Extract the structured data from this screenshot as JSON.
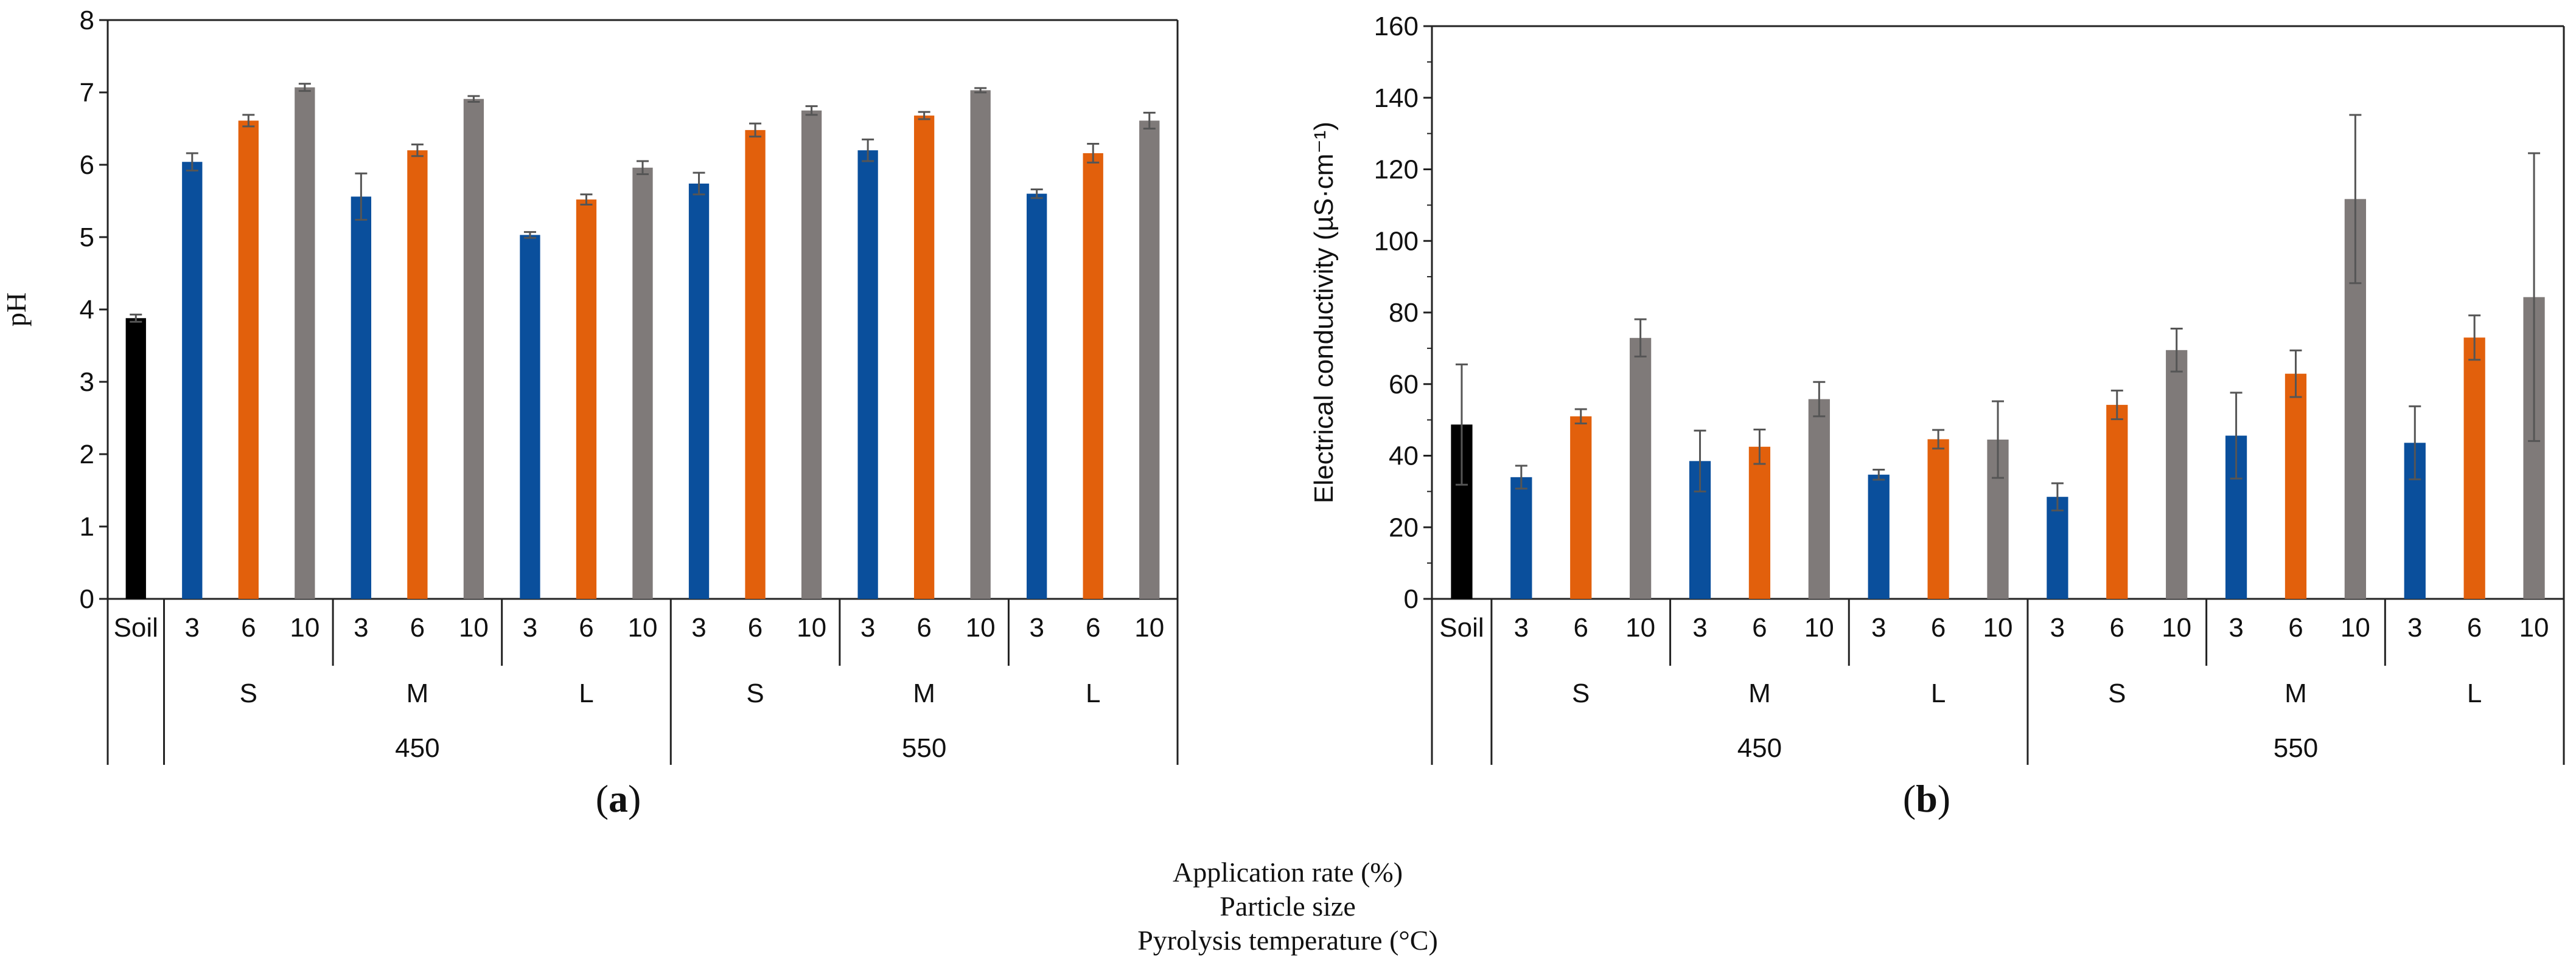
{
  "colors": {
    "soil": "#000000",
    "rate3": "#0a4f9c",
    "rate6": "#e2600c",
    "rate10": "#7f7a79",
    "axis": "#222222",
    "errorbar": "#555555"
  },
  "chart_data": [
    {
      "type": "bar",
      "panel_label_pre": "(",
      "panel_label": "a",
      "panel_label_post": ")",
      "ylabel": "pH",
      "ylim": [
        0,
        8
      ],
      "yticks": [
        0,
        1,
        2,
        3,
        4,
        5,
        6,
        7,
        8
      ],
      "xlabel_levels": [
        {
          "name": "Application rate (%)",
          "labels": [
            "Soil",
            "3",
            "6",
            "10",
            "3",
            "6",
            "10",
            "3",
            "6",
            "10",
            "3",
            "6",
            "10",
            "3",
            "6",
            "10",
            "3",
            "6",
            "10"
          ]
        },
        {
          "name": "Particle size",
          "labels": [
            "S",
            "M",
            "L",
            "S",
            "M",
            "L"
          ]
        },
        {
          "name": "Pyrolysis temperature (°C)",
          "labels": [
            "450",
            "550"
          ]
        }
      ],
      "series": [
        {
          "name": "Soil",
          "categories": [
            "Soil"
          ],
          "values": [
            3.88
          ],
          "errors": [
            0.05
          ]
        },
        {
          "name": "3",
          "categories": [
            "450-S",
            "450-M",
            "450-L",
            "550-S",
            "550-M",
            "550-L"
          ],
          "values": [
            6.04,
            5.56,
            5.03,
            5.74,
            6.2,
            5.6
          ],
          "errors": [
            0.12,
            0.32,
            0.04,
            0.15,
            0.15,
            0.06
          ]
        },
        {
          "name": "6",
          "categories": [
            "450-S",
            "450-M",
            "450-L",
            "550-S",
            "550-M",
            "550-L"
          ],
          "values": [
            6.61,
            6.2,
            5.52,
            6.48,
            6.68,
            6.16
          ],
          "errors": [
            0.08,
            0.08,
            0.07,
            0.09,
            0.05,
            0.13
          ]
        },
        {
          "name": "10",
          "categories": [
            "450-S",
            "450-M",
            "450-L",
            "550-S",
            "550-M",
            "550-L"
          ],
          "values": [
            7.07,
            6.91,
            5.96,
            6.75,
            7.03,
            6.61
          ],
          "errors": [
            0.05,
            0.04,
            0.09,
            0.06,
            0.03,
            0.11
          ]
        }
      ]
    },
    {
      "type": "bar",
      "panel_label_pre": "(",
      "panel_label": "b",
      "panel_label_post": ")",
      "ylabel": "Electrical conductivity (µS·cm⁻¹)",
      "ylim": [
        0,
        160
      ],
      "yticks": [
        0,
        20,
        40,
        60,
        80,
        100,
        120,
        140,
        160
      ],
      "xlabel_levels": [
        {
          "name": "Application rate (%)",
          "labels": [
            "Soil",
            "3",
            "6",
            "10",
            "3",
            "6",
            "10",
            "3",
            "6",
            "10",
            "3",
            "6",
            "10",
            "3",
            "6",
            "10",
            "3",
            "6",
            "10"
          ]
        },
        {
          "name": "Particle size",
          "labels": [
            "S",
            "M",
            "L",
            "S",
            "M",
            "L"
          ]
        },
        {
          "name": "Pyrolysis temperature (°C)",
          "labels": [
            "450",
            "550"
          ]
        }
      ],
      "series": [
        {
          "name": "Soil",
          "categories": [
            "Soil"
          ],
          "values": [
            48.7
          ],
          "errors": [
            16.8
          ]
        },
        {
          "name": "3",
          "categories": [
            "450-S",
            "450-M",
            "450-L",
            "550-S",
            "550-M",
            "550-L"
          ],
          "values": [
            34.0,
            38.5,
            34.7,
            28.5,
            45.6,
            43.6
          ],
          "errors": [
            3.2,
            8.5,
            1.4,
            3.8,
            12.0,
            10.2
          ]
        },
        {
          "name": "6",
          "categories": [
            "450-S",
            "450-M",
            "450-L",
            "550-S",
            "550-M",
            "550-L"
          ],
          "values": [
            51.0,
            42.5,
            44.6,
            54.2,
            62.9,
            73.0
          ],
          "errors": [
            2.0,
            4.8,
            2.6,
            4.0,
            6.5,
            6.2
          ]
        },
        {
          "name": "10",
          "categories": [
            "450-S",
            "450-M",
            "450-L",
            "550-S",
            "550-M",
            "550-L"
          ],
          "values": [
            72.9,
            55.8,
            44.5,
            69.5,
            111.7,
            84.3
          ],
          "errors": [
            5.2,
            4.8,
            10.7,
            6.0,
            23.5,
            40.2
          ]
        }
      ]
    }
  ],
  "footer": {
    "line1": "Application rate (%)",
    "line2": "Particle size",
    "line3": "Pyrolysis temperature (°C)"
  }
}
